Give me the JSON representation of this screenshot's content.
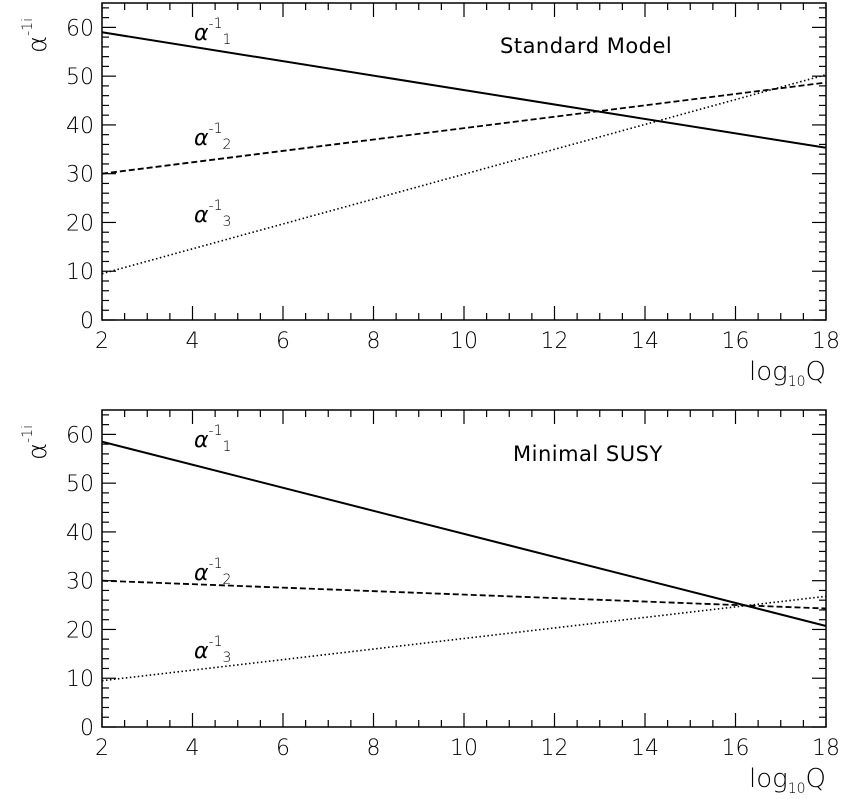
{
  "chart_data": [
    {
      "type": "line",
      "annotation": "Standard Model",
      "xlabel": {
        "main": "log",
        "sub": "10",
        "tail": "Q"
      },
      "ylabel": {
        "base": "α",
        "sup": "-1",
        "sub": "i"
      },
      "xlim": [
        2,
        18
      ],
      "ylim": [
        0,
        65
      ],
      "xticks": [
        "2",
        "4",
        "6",
        "8",
        "10",
        "12",
        "14",
        "16",
        "18"
      ],
      "yticks": [
        "0",
        "10",
        "20",
        "30",
        "40",
        "50",
        "60"
      ],
      "series": [
        {
          "label": {
            "base": "α",
            "sup": "-1",
            "sub": "1"
          },
          "style": "solid",
          "x": [
            2,
            18
          ],
          "y": [
            59,
            35.3
          ]
        },
        {
          "label": {
            "base": "α",
            "sup": "-1",
            "sub": "2"
          },
          "style": "dashed",
          "x": [
            2,
            18
          ],
          "y": [
            30,
            48.7
          ]
        },
        {
          "label": {
            "base": "α",
            "sup": "-1",
            "sub": "3"
          },
          "style": "dotted",
          "x": [
            2,
            18
          ],
          "y": [
            9.5,
            50.3
          ]
        }
      ]
    },
    {
      "type": "line",
      "annotation": "Minimal SUSY",
      "xlabel": {
        "main": "log",
        "sub": "10",
        "tail": "Q"
      },
      "ylabel": {
        "base": "α",
        "sup": "-1",
        "sub": "i"
      },
      "xlim": [
        2,
        18
      ],
      "ylim": [
        0,
        65
      ],
      "xticks": [
        "2",
        "4",
        "6",
        "8",
        "10",
        "12",
        "14",
        "16",
        "18"
      ],
      "yticks": [
        "0",
        "10",
        "20",
        "30",
        "40",
        "50",
        "60"
      ],
      "series": [
        {
          "label": {
            "base": "α",
            "sup": "-1",
            "sub": "1"
          },
          "style": "solid",
          "x": [
            2,
            18
          ],
          "y": [
            58.5,
            20.7
          ]
        },
        {
          "label": {
            "base": "α",
            "sup": "-1",
            "sub": "2"
          },
          "style": "dashed",
          "x": [
            2,
            18
          ],
          "y": [
            30,
            24.3
          ]
        },
        {
          "label": {
            "base": "α",
            "sup": "-1",
            "sub": "3"
          },
          "style": "dotted",
          "x": [
            2,
            18
          ],
          "y": [
            9.5,
            26.8
          ]
        }
      ]
    }
  ]
}
